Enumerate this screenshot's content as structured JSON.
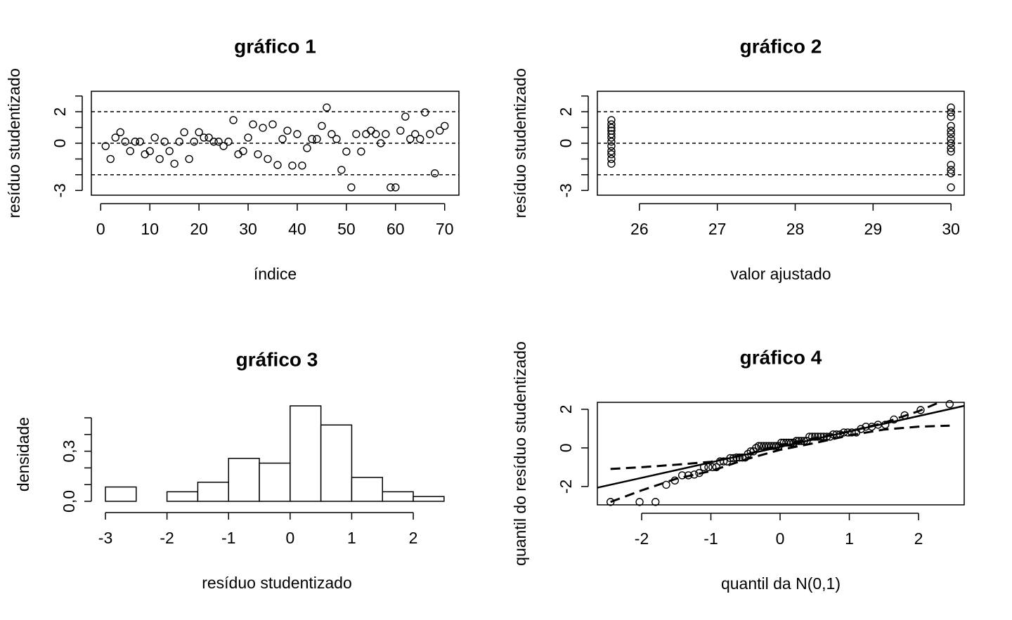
{
  "chart_data": [
    {
      "type": "scatter",
      "title": "gráfico 1",
      "xlabel": "índice",
      "ylabel": "resíduo studentizado",
      "x": [
        1,
        2,
        3,
        4,
        5,
        6,
        7,
        8,
        9,
        10,
        11,
        12,
        13,
        14,
        15,
        16,
        17,
        18,
        19,
        20,
        21,
        22,
        23,
        24,
        25,
        26,
        27,
        28,
        29,
        30,
        31,
        32,
        33,
        34,
        35,
        36,
        37,
        38,
        39,
        40,
        41,
        42,
        43,
        44,
        45,
        46,
        47,
        48,
        49,
        50,
        51,
        52,
        53,
        54,
        55,
        56,
        57,
        58,
        59,
        60,
        61,
        62,
        63,
        64,
        65,
        66,
        67,
        68,
        69,
        70
      ],
      "y": [
        -0.18,
        -1.0,
        0.36,
        0.7,
        0.1,
        -0.5,
        0.1,
        0.1,
        -0.7,
        -0.5,
        0.36,
        -1.0,
        0.1,
        -0.5,
        -1.3,
        0.1,
        0.7,
        -1.0,
        0.1,
        0.7,
        0.36,
        0.36,
        0.1,
        0.1,
        -0.18,
        0.1,
        1.47,
        -0.7,
        -0.5,
        0.36,
        1.2,
        -0.7,
        0.98,
        -1.0,
        1.2,
        -1.38,
        0.27,
        0.8,
        -1.42,
        0.58,
        -1.42,
        -0.31,
        0.27,
        0.27,
        1.1,
        2.27,
        0.58,
        0.27,
        -1.69,
        -0.53,
        -2.8,
        0.58,
        -0.53,
        0.58,
        0.8,
        0.58,
        0.0,
        0.58,
        -2.8,
        -2.8,
        0.8,
        1.69,
        0.27,
        0.58,
        0.27,
        1.96,
        0.58,
        -1.91,
        0.8,
        1.1
      ],
      "xlim": [
        -1.9,
        72.9
      ],
      "ylim": [
        -3.3,
        3.3
      ],
      "xticks": [
        0,
        10,
        20,
        30,
        40,
        50,
        60,
        70
      ],
      "yticks": [
        -3,
        0,
        2
      ],
      "yminorticks": [
        -2,
        -1,
        1,
        3
      ],
      "hlines": [
        -2,
        0,
        2
      ],
      "color": "#000000"
    },
    {
      "type": "scatter",
      "title": "gráfico 2",
      "xlabel": "valor ajustado",
      "ylabel": "resíduo studentizado",
      "x": [
        25.64,
        25.64,
        25.64,
        25.64,
        25.64,
        25.64,
        25.64,
        25.64,
        25.64,
        25.64,
        25.64,
        25.64,
        30,
        30,
        30,
        30,
        30,
        30,
        30,
        30,
        30,
        30,
        30,
        30,
        30,
        30
      ],
      "y": [
        1.47,
        1.2,
        0.98,
        0.8,
        0.58,
        0.36,
        0.1,
        -0.18,
        -0.5,
        -0.7,
        -1.0,
        -1.3,
        2.27,
        1.96,
        1.69,
        1.1,
        0.8,
        0.58,
        0.27,
        0.0,
        -0.31,
        -0.53,
        -1.38,
        -1.69,
        -1.91,
        -2.8
      ],
      "xlim": [
        25.46,
        30.17
      ],
      "ylim": [
        -3.3,
        3.3
      ],
      "xticks": [
        26,
        27,
        28,
        29,
        30
      ],
      "yticks": [
        -3,
        0,
        2
      ],
      "yminorticks": [
        -2,
        -1,
        1,
        3
      ],
      "hlines": [
        -2,
        0,
        2
      ],
      "color": "#000000"
    },
    {
      "type": "histogram",
      "title": "gráfico 3",
      "xlabel": "resíduo studentizado",
      "ylabel": "densidade",
      "bins": [
        -3,
        -2.5,
        -2,
        -1.5,
        -1,
        -0.5,
        0,
        0.5,
        1,
        1.5,
        2,
        2.5
      ],
      "values": [
        0.0857,
        0,
        0.0571,
        0.1143,
        0.2571,
        0.2286,
        0.5714,
        0.4571,
        0.1429,
        0.0571,
        0.0286
      ],
      "xlim": [
        -3.08,
        2.65
      ],
      "ylim": [
        -0.017,
        0.58
      ],
      "xticks": [
        -3,
        -2,
        -1,
        0,
        1,
        2
      ],
      "yticks": [
        {
          "value": 0,
          "label": "0,0"
        },
        {
          "value": 0.3,
          "label": "0,3"
        }
      ],
      "yminorticks": [
        0.1,
        0.2,
        0.4,
        0.5
      ],
      "color": "#ffffff"
    },
    {
      "type": "qq",
      "title": "gráfico 4",
      "xlabel": "quantil da N(0,1)",
      "ylabel": "quantil do resíduo studentizado",
      "x": [
        -2.45,
        -2.03,
        -1.8,
        -1.645,
        -1.52,
        -1.415,
        -1.325,
        -1.24,
        -1.168,
        -1.1,
        -1.036,
        -0.977,
        -0.921,
        -0.867,
        -0.816,
        -0.767,
        -0.72,
        -0.674,
        -0.63,
        -0.587,
        -0.545,
        -0.504,
        -0.464,
        -0.424,
        -0.385,
        -0.347,
        -0.309,
        -0.272,
        -0.235,
        -0.198,
        -0.162,
        -0.126,
        -0.09,
        -0.054,
        -0.018,
        0.018,
        0.054,
        0.09,
        0.126,
        0.162,
        0.198,
        0.235,
        0.272,
        0.309,
        0.347,
        0.385,
        0.424,
        0.464,
        0.504,
        0.545,
        0.587,
        0.63,
        0.674,
        0.72,
        0.767,
        0.816,
        0.867,
        0.921,
        0.977,
        1.036,
        1.1,
        1.168,
        1.24,
        1.325,
        1.415,
        1.52,
        1.645,
        1.8,
        2.03,
        2.45
      ],
      "y": [
        -2.8,
        -2.8,
        -2.8,
        -1.91,
        -1.69,
        -1.42,
        -1.42,
        -1.38,
        -1.3,
        -1.0,
        -1.0,
        -1.0,
        -1.0,
        -0.7,
        -0.7,
        -0.7,
        -0.53,
        -0.53,
        -0.5,
        -0.5,
        -0.5,
        -0.5,
        -0.31,
        -0.18,
        -0.18,
        0.0,
        0.1,
        0.1,
        0.1,
        0.1,
        0.1,
        0.1,
        0.1,
        0.1,
        0.1,
        0.27,
        0.27,
        0.27,
        0.27,
        0.27,
        0.27,
        0.36,
        0.36,
        0.36,
        0.36,
        0.36,
        0.58,
        0.58,
        0.58,
        0.58,
        0.58,
        0.58,
        0.58,
        0.58,
        0.7,
        0.7,
        0.7,
        0.8,
        0.8,
        0.8,
        0.8,
        0.98,
        1.1,
        1.1,
        1.2,
        1.2,
        1.47,
        1.69,
        1.96,
        2.27
      ],
      "ref_line": {
        "intercept": 0.05,
        "slope": 0.8
      },
      "envelope_upper": {
        "x": [
          -2.45,
          -2,
          -1.5,
          -1,
          -0.5,
          0,
          0.5,
          1,
          1.5,
          2,
          2.3
        ],
        "y": [
          -1.09,
          -1.0,
          -0.87,
          -0.72,
          -0.35,
          0.15,
          0.5,
          0.85,
          1.3,
          1.9,
          2.36
        ]
      },
      "envelope_lower": {
        "x": [
          -2.45,
          -2,
          -1.5,
          -1,
          -0.5,
          0,
          0.5,
          1,
          1.5,
          2,
          2.45
        ],
        "y": [
          -2.8,
          -2.2,
          -1.6,
          -1.2,
          -0.6,
          -0.1,
          0.25,
          0.65,
          0.95,
          1.1,
          1.15
        ]
      },
      "xlim": [
        -2.64,
        2.66
      ],
      "ylim": [
        -2.95,
        2.36
      ],
      "xticks": [
        -2,
        -1,
        0,
        1,
        2
      ],
      "yticks": [
        -2,
        0,
        2
      ],
      "color": "#000000"
    }
  ]
}
